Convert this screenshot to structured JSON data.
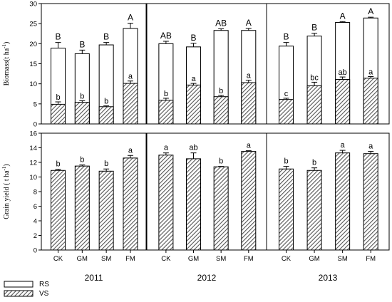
{
  "chart_data": {
    "type": "bar",
    "stacked_top": true,
    "categories": [
      "CK",
      "GM",
      "SM",
      "FM"
    ],
    "years": [
      "2011",
      "2012",
      "2013"
    ],
    "legend": {
      "placement": "bottom-left",
      "entries": [
        {
          "key": "RS",
          "pattern": "open"
        },
        {
          "key": "VS",
          "pattern": "hatched"
        }
      ]
    },
    "top_panel": {
      "ylabel": "Biomass(t ha",
      "ylabel_sup": "-1",
      "ylabel_end": ")",
      "ylim": [
        0,
        30
      ],
      "yticks": [
        "0",
        "5",
        "10",
        "15",
        "20",
        "25",
        "30"
      ],
      "panels": [
        {
          "year": "2011",
          "total": [
            18.9,
            17.5,
            19.7,
            23.8
          ],
          "total_err": [
            1.4,
            0.9,
            0.6,
            1.3
          ],
          "total_labels": [
            "B",
            "B",
            "B",
            "A"
          ],
          "vs": [
            4.9,
            5.4,
            4.3,
            10.1
          ],
          "vs_err": [
            0.6,
            0.4,
            0.2,
            0.6
          ],
          "vs_labels": [
            "b",
            "b",
            "b",
            "a"
          ]
        },
        {
          "year": "2012",
          "total": [
            20.0,
            19.2,
            23.3,
            23.3
          ],
          "total_err": [
            0.6,
            0.9,
            0.4,
            0.5
          ],
          "total_labels": [
            "AB",
            "B",
            "AB",
            "A"
          ],
          "vs": [
            5.9,
            9.7,
            6.8,
            10.3
          ],
          "vs_err": [
            0.5,
            0.4,
            0.3,
            0.6
          ],
          "vs_labels": [
            "b",
            "a",
            "b",
            "a"
          ]
        },
        {
          "year": "2013",
          "total": [
            19.4,
            21.9,
            25.3,
            26.4
          ],
          "total_err": [
            0.9,
            0.7,
            0.2,
            0.2
          ],
          "total_labels": [
            "B",
            "B",
            "A",
            "A"
          ],
          "vs": [
            6.1,
            9.5,
            11.1,
            11.4
          ],
          "vs_err": [
            0.3,
            0.9,
            0.6,
            0.4
          ],
          "vs_labels": [
            "c",
            "bc",
            "ab",
            "a"
          ]
        }
      ]
    },
    "bottom_panel": {
      "ylabel": "Grain yield ( t ha",
      "ylabel_sup": "-1",
      "ylabel_end": ")",
      "ylim": [
        0,
        16
      ],
      "yticks": [
        "0",
        "2",
        "4",
        "6",
        "8",
        "10",
        "12",
        "14",
        "16"
      ],
      "panels": [
        {
          "year": "2011",
          "values": [
            10.9,
            11.5,
            10.8,
            12.6
          ],
          "err": [
            0.15,
            0.15,
            0.3,
            0.35
          ],
          "labels": [
            "b",
            "b",
            "b",
            "a"
          ]
        },
        {
          "year": "2012",
          "values": [
            13.0,
            12.5,
            11.4,
            13.5
          ],
          "err": [
            0.3,
            0.8,
            0.05,
            0.1
          ],
          "labels": [
            "a",
            "ab",
            "b",
            "a"
          ]
        },
        {
          "year": "2013",
          "values": [
            11.1,
            10.9,
            13.3,
            13.2
          ],
          "err": [
            0.35,
            0.35,
            0.35,
            0.3
          ],
          "labels": [
            "b",
            "b",
            "a",
            "a"
          ]
        }
      ]
    },
    "colors": {
      "bar_outline": "#000000",
      "open_fill": "#ffffff",
      "hatch": "#555555"
    }
  }
}
